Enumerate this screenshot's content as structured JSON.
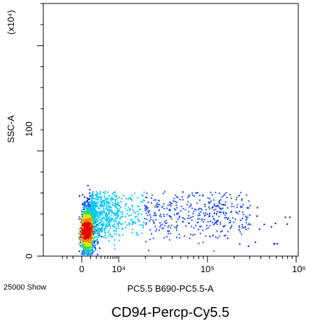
{
  "chart_data": {
    "type": "scatter",
    "title": "",
    "caption": "CD94-Percp-Cy5.5",
    "xlabel": "PC5.5 B690-PC5.5-A",
    "ylabel": "SSC-A",
    "y_scale_label": "(x10⁴)",
    "x_scale": "biexponential",
    "y_scale": "linear",
    "event_count_label": "25000 Show",
    "x_ticks": [
      "0",
      "10⁴",
      "10⁵",
      "10⁶"
    ],
    "x_tick_values": [
      0,
      10000,
      100000,
      1000000
    ],
    "y_ticks": [
      "0",
      "100"
    ],
    "y_tick_values": [
      0,
      100
    ],
    "ylim": [
      0,
      240
    ],
    "grid": false,
    "legend": "none",
    "colormap": [
      "#0000c8",
      "#1e50ff",
      "#00c8ff",
      "#32e632",
      "#e6e600",
      "#ff8c00",
      "#e60000"
    ],
    "density_clusters": [
      {
        "name": "main population",
        "x_center": 500,
        "y_center": 25,
        "x_spread_decades": 0.25,
        "y_spread": 12
      },
      {
        "name": "tail population",
        "x_from": 1000,
        "x_to": 300000,
        "y_center": 40,
        "y_spread": 12
      }
    ]
  }
}
